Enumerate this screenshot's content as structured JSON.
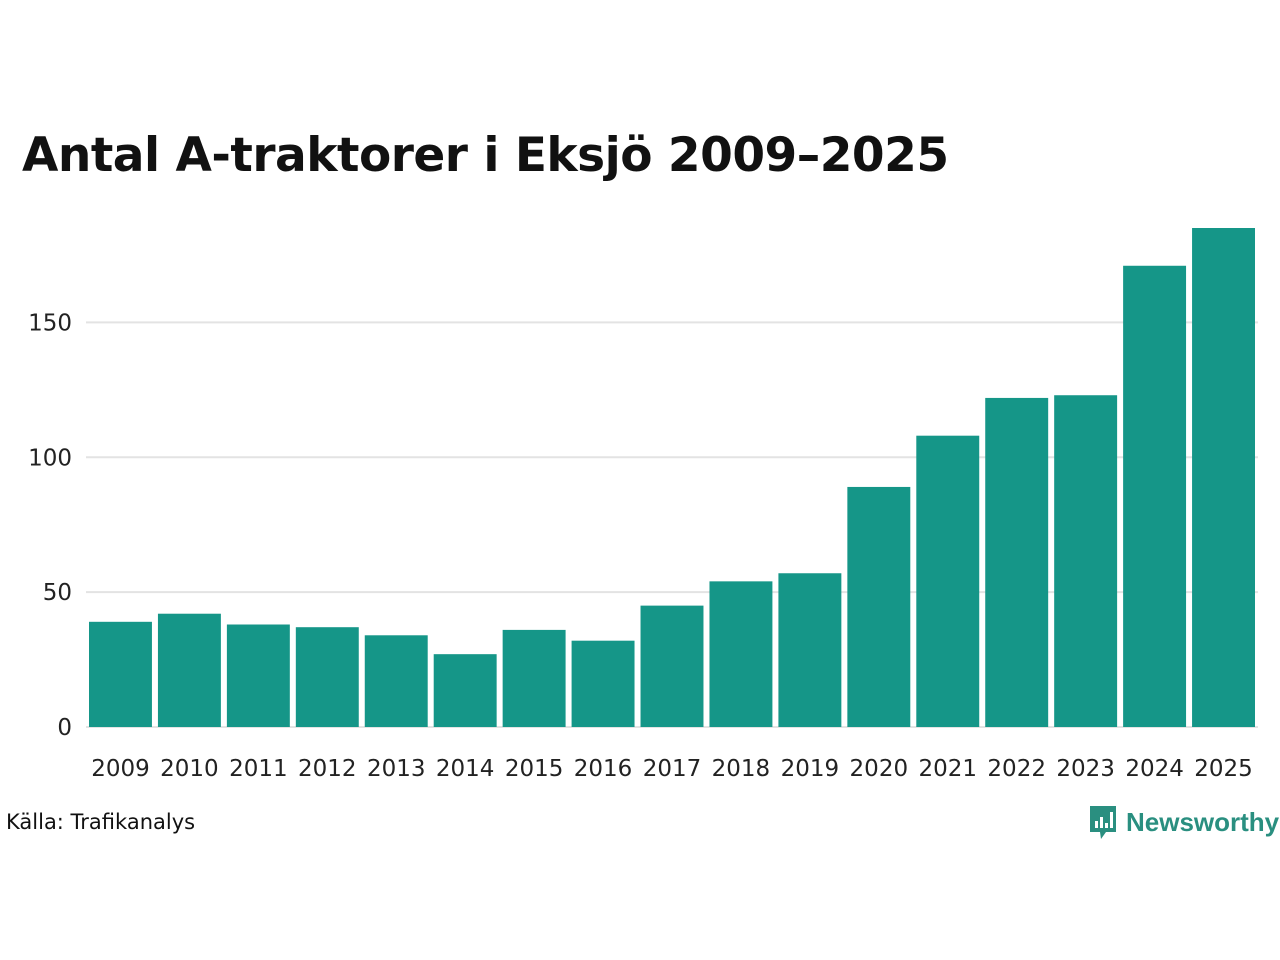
{
  "colors": {
    "bar": "#159688",
    "grid": "#e3e3e3",
    "brand": "#2a8f80"
  },
  "source": "Källa: Trafikanalys",
  "brand_name": "Newsworthy",
  "chart_data": {
    "type": "bar",
    "title": "Antal A-traktorer i Eksjö 2009–2025",
    "xlabel": "",
    "ylabel": "",
    "categories": [
      "2009",
      "2010",
      "2011",
      "2012",
      "2013",
      "2014",
      "2015",
      "2016",
      "2017",
      "2018",
      "2019",
      "2020",
      "2021",
      "2022",
      "2023",
      "2024",
      "2025"
    ],
    "values": [
      39,
      42,
      38,
      37,
      34,
      27,
      36,
      32,
      45,
      54,
      57,
      89,
      108,
      122,
      123,
      171,
      185
    ],
    "yticks": [
      0,
      50,
      100,
      150
    ],
    "ylim": [
      0,
      185
    ],
    "grid": true,
    "legend": "none"
  }
}
